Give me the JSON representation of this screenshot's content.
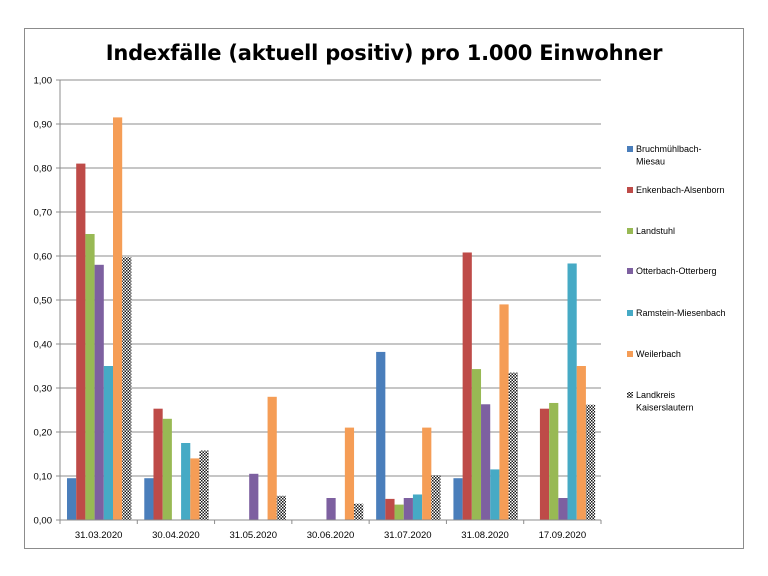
{
  "chart_data": {
    "type": "bar",
    "title": "Indexfälle (aktuell positiv) pro 1.000 Einwohner",
    "categories": [
      "31.03.2020",
      "30.04.2020",
      "31.05.2020",
      "30.06.2020",
      "31.07.2020",
      "31.08.2020",
      "17.09.2020"
    ],
    "ylim": [
      0,
      1.0
    ],
    "yticks": [
      "0,00",
      "0,10",
      "0,20",
      "0,30",
      "0,40",
      "0,50",
      "0,60",
      "0,70",
      "0,80",
      "0,90",
      "1,00"
    ],
    "grid": true,
    "legend_position": "right",
    "series": [
      {
        "name": "Bruchmühlbach-Miesau",
        "legend_lines": [
          "Bruchmühlbach-",
          "Miesau"
        ],
        "color": "#4a7ebb",
        "values": [
          0.095,
          0.095,
          0,
          0,
          0.382,
          0.095,
          0
        ]
      },
      {
        "name": "Enkenbach-Alsenborn",
        "legend_lines": [
          "Enkenbach-Alsenborn"
        ],
        "color": "#be4b48",
        "values": [
          0.81,
          0.253,
          0,
          0,
          0.048,
          0.608,
          0.253
        ]
      },
      {
        "name": "Landstuhl",
        "legend_lines": [
          "Landstuhl"
        ],
        "color": "#98b954",
        "values": [
          0.65,
          0.23,
          0,
          0,
          0.035,
          0.343,
          0.266
        ]
      },
      {
        "name": "Otterbach-Otterberg",
        "legend_lines": [
          "Otterbach-Otterberg"
        ],
        "color": "#7d60a0",
        "values": [
          0.58,
          0,
          0.105,
          0.05,
          0.05,
          0.263,
          0.05
        ]
      },
      {
        "name": "Ramstein-Miesenbach",
        "legend_lines": [
          "Ramstein-Miesenbach"
        ],
        "color": "#46aac5",
        "values": [
          0.35,
          0.175,
          0,
          0,
          0.058,
          0.115,
          0.583
        ]
      },
      {
        "name": "Weilerbach",
        "legend_lines": [
          "Weilerbach"
        ],
        "color": "#f59d56",
        "values": [
          0.915,
          0.14,
          0.28,
          0.21,
          0.21,
          0.49,
          0.35
        ]
      },
      {
        "name": "Landkreis Kaiserslautern",
        "legend_lines": [
          "Landkreis",
          "Kaiserslautern"
        ],
        "color": "#404040",
        "pattern": "checker",
        "values": [
          0.597,
          0.158,
          0.055,
          0.037,
          0.102,
          0.335,
          0.262
        ]
      }
    ]
  }
}
